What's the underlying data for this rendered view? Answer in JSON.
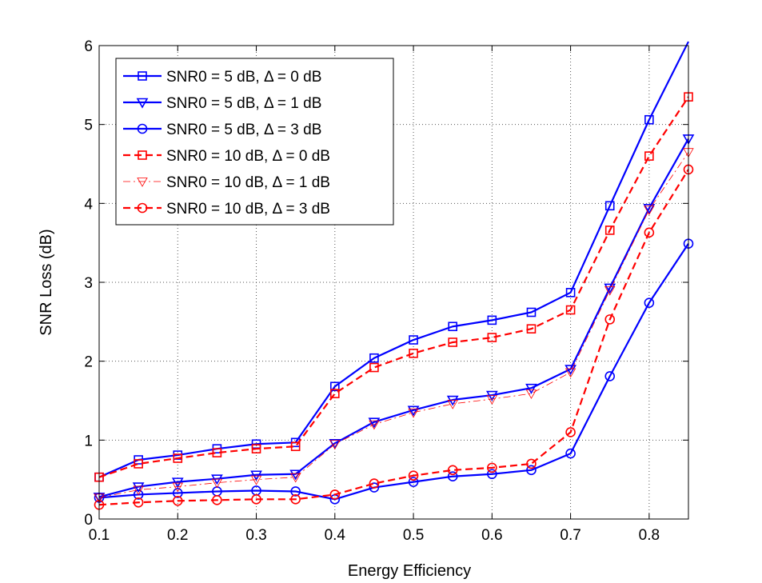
{
  "chart_data": {
    "type": "line",
    "xlabel": "Energy Efficiency",
    "ylabel": "SNR Loss (dB)",
    "xlim": [
      0.1,
      0.85
    ],
    "ylim": [
      0,
      6
    ],
    "xticks": [
      0.1,
      0.2,
      0.3,
      0.4,
      0.5,
      0.6,
      0.7,
      0.8
    ],
    "xtick_labels": [
      "0.1",
      "0.2",
      "0.3",
      "0.4",
      "0.5",
      "0.6",
      "0.7",
      "0.8"
    ],
    "yticks": [
      0,
      1,
      2,
      3,
      4,
      5,
      6
    ],
    "ytick_labels": [
      "0",
      "1",
      "2",
      "3",
      "4",
      "5",
      "6"
    ],
    "grid": true,
    "legend_position": "top-left",
    "x": [
      0.1,
      0.15,
      0.2,
      0.25,
      0.3,
      0.35,
      0.4,
      0.45,
      0.5,
      0.55,
      0.6,
      0.65,
      0.7,
      0.75,
      0.8,
      0.85
    ],
    "series": [
      {
        "name": "SNR0 = 5 dB, Δ = 0 dB",
        "color": "#0000ff",
        "dash": "solid",
        "marker": "square",
        "width": "thick",
        "values": [
          0.53,
          0.75,
          0.81,
          0.89,
          0.95,
          0.97,
          1.68,
          2.04,
          2.27,
          2.44,
          2.52,
          2.62,
          2.87,
          3.97,
          5.06,
          6.05
        ]
      },
      {
        "name": "SNR0 = 5 dB, Δ = 1 dB",
        "color": "#0000ff",
        "dash": "solid",
        "marker": "triangle-down",
        "width": "thick",
        "values": [
          0.28,
          0.41,
          0.47,
          0.51,
          0.56,
          0.57,
          0.96,
          1.23,
          1.38,
          1.51,
          1.57,
          1.66,
          1.9,
          2.93,
          3.94,
          4.82
        ]
      },
      {
        "name": "SNR0 = 5 dB, Δ = 3 dB",
        "color": "#0000ff",
        "dash": "solid",
        "marker": "circle",
        "width": "thick",
        "values": [
          0.27,
          0.31,
          0.33,
          0.35,
          0.36,
          0.35,
          0.25,
          0.4,
          0.47,
          0.54,
          0.57,
          0.62,
          0.83,
          1.81,
          2.74,
          3.49
        ]
      },
      {
        "name": "SNR0 = 10 dB, Δ = 0 dB",
        "color": "#ff0000",
        "dash": "dashed",
        "marker": "square",
        "width": "thick",
        "values": [
          0.53,
          0.7,
          0.77,
          0.84,
          0.89,
          0.92,
          1.59,
          1.92,
          2.1,
          2.24,
          2.3,
          2.41,
          2.65,
          3.66,
          4.6,
          5.35
        ]
      },
      {
        "name": "SNR0 = 10 dB, Δ = 1 dB",
        "color": "#ff0000",
        "dash": "dashdot",
        "marker": "triangle-down",
        "width": "thin",
        "values": [
          0.27,
          0.37,
          0.41,
          0.46,
          0.5,
          0.53,
          0.95,
          1.2,
          1.35,
          1.46,
          1.52,
          1.59,
          1.86,
          2.9,
          3.92,
          4.65
        ]
      },
      {
        "name": "SNR0 = 10 dB, Δ = 3 dB",
        "color": "#ff0000",
        "dash": "dashed",
        "marker": "circle",
        "width": "thick",
        "values": [
          0.18,
          0.21,
          0.23,
          0.24,
          0.25,
          0.25,
          0.31,
          0.45,
          0.55,
          0.62,
          0.65,
          0.7,
          1.1,
          2.53,
          3.63,
          4.43
        ]
      }
    ]
  }
}
